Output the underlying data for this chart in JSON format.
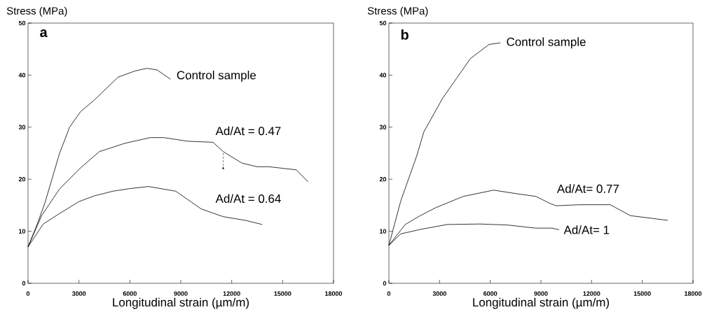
{
  "chart_data": [
    {
      "type": "line",
      "ylabel": "Stress (MPa)",
      "xlabel": "Longitudinal strain (µm/m)",
      "annotations": [
        "a"
      ],
      "xlim": [
        0,
        18000
      ],
      "ylim": [
        0,
        50
      ],
      "xticks": [
        0,
        3000,
        6000,
        9000,
        12000,
        15000,
        18000
      ],
      "yticks": [
        0,
        10,
        20,
        30,
        40,
        50
      ],
      "series": [
        {
          "name": "Control sample",
          "color": "#000000",
          "x": [
            0,
            500,
            1000,
            1850,
            2450,
            3100,
            3900,
            5300,
            6300,
            7000,
            7600,
            8400
          ],
          "values": [
            7,
            11,
            15.5,
            24.9,
            30,
            33,
            35.2,
            39.6,
            40.8,
            41.3,
            41,
            39.2
          ]
        },
        {
          "name": "Ad/At = 0.47",
          "color": "#000000",
          "x": [
            0,
            800,
            1850,
            3100,
            4200,
            5700,
            7200,
            8000,
            9400,
            10900,
            11500,
            12600,
            13500,
            14200,
            15800,
            16500
          ],
          "values": [
            7,
            13,
            18.1,
            22.2,
            25.3,
            26.9,
            28,
            28,
            27.3,
            27.1,
            25.3,
            23.1,
            22.4,
            22.4,
            21.8,
            19.5
          ]
        },
        {
          "name": "Ad/At = 0.64",
          "color": "#000000",
          "x": [
            0,
            900,
            1850,
            3000,
            3900,
            5000,
            6000,
            7100,
            8700,
            10200,
            11500,
            12800,
            13800
          ],
          "values": [
            7,
            11.4,
            13.4,
            15.7,
            16.8,
            17.7,
            18.2,
            18.6,
            17.7,
            14.3,
            12.8,
            12.1,
            11.3
          ]
        }
      ]
    },
    {
      "type": "line",
      "ylabel": "Stress (MPa)",
      "xlabel": "Longitudinal strain (µm/m)",
      "annotations": [
        "b"
      ],
      "xlim": [
        0,
        18000
      ],
      "ylim": [
        0,
        50
      ],
      "xticks": [
        0,
        3000,
        6000,
        9000,
        12000,
        15000,
        18000
      ],
      "yticks": [
        0,
        10,
        20,
        30,
        40,
        50
      ],
      "series": [
        {
          "name": "Control sample",
          "color": "#000000",
          "x": [
            0,
            700,
            1650,
            2070,
            3170,
            4830,
            5930,
            6600
          ],
          "values": [
            7.3,
            15.8,
            24.5,
            29.1,
            35.5,
            43.2,
            45.9,
            46.2
          ]
        },
        {
          "name": "Ad/At= 0.77",
          "color": "#000000",
          "x": [
            0,
            970,
            1800,
            2750,
            4400,
            6200,
            7600,
            8700,
            9500,
            9900,
            11300,
            13100,
            14300,
            16500
          ],
          "values": [
            7.3,
            11.3,
            12.9,
            14.5,
            16.7,
            17.9,
            17.2,
            16.7,
            15.4,
            14.9,
            15.1,
            15.1,
            13,
            12.1
          ]
        },
        {
          "name": "Ad/At= 1",
          "color": "#000000",
          "x": [
            0,
            700,
            1930,
            3450,
            5380,
            7030,
            8690,
            9660,
            10070
          ],
          "values": [
            7.3,
            9.5,
            10.4,
            11.3,
            11.4,
            11.2,
            10.6,
            10.6,
            10.3
          ]
        }
      ]
    }
  ]
}
